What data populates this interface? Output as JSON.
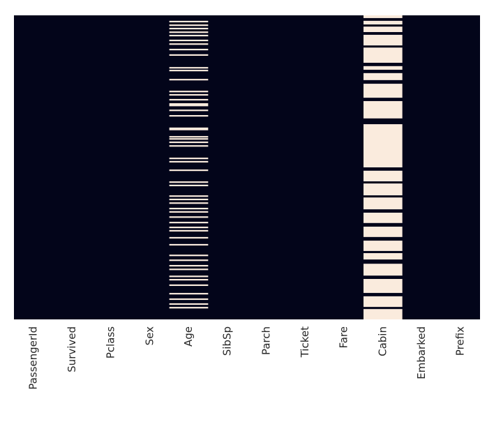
{
  "chart_data": {
    "type": "heatmap",
    "categories": [
      "PassengerId",
      "Survived",
      "Pclass",
      "Sex",
      "Age",
      "SibSp",
      "Parch",
      "Ticket",
      "Fare",
      "Cabin",
      "Embarked",
      "Prefix"
    ],
    "ylim": [
      0,
      100
    ],
    "colors": {
      "present": "#03051a",
      "missing": "#faebdd"
    },
    "missing": [
      [],
      [],
      [],
      [],
      [
        [
          1.8,
          2.3
        ],
        [
          3.0,
          3.5
        ],
        [
          4.1,
          4.6
        ],
        [
          5.3,
          5.8
        ],
        [
          6.4,
          6.9
        ],
        [
          8.0,
          8.5
        ],
        [
          9.2,
          9.7
        ],
        [
          11.0,
          11.5
        ],
        [
          12.8,
          13.3
        ],
        [
          17.0,
          17.5
        ],
        [
          17.9,
          18.4
        ],
        [
          20.9,
          21.4
        ],
        [
          24.8,
          25.3
        ],
        [
          25.9,
          26.4
        ],
        [
          27.5,
          28.0
        ],
        [
          28.9,
          29.9
        ],
        [
          31.0,
          31.5
        ],
        [
          32.8,
          33.3
        ],
        [
          36.9,
          37.8
        ],
        [
          39.7,
          40.2
        ],
        [
          40.4,
          40.9
        ],
        [
          41.5,
          42.0
        ],
        [
          42.7,
          43.2
        ],
        [
          46.8,
          47.3
        ],
        [
          47.9,
          48.4
        ],
        [
          50.7,
          51.2
        ],
        [
          54.6,
          55.1
        ],
        [
          55.7,
          56.2
        ],
        [
          59.2,
          59.7
        ],
        [
          60.3,
          60.8
        ],
        [
          61.5,
          62.0
        ],
        [
          63.3,
          63.8
        ],
        [
          64.4,
          64.9
        ],
        [
          66.1,
          66.6
        ],
        [
          67.9,
          68.4
        ],
        [
          69.5,
          70.0
        ],
        [
          70.6,
          71.1
        ],
        [
          72.9,
          73.4
        ],
        [
          75.2,
          75.7
        ],
        [
          78.7,
          79.2
        ],
        [
          80.3,
          80.8
        ],
        [
          82.1,
          82.6
        ],
        [
          83.3,
          83.8
        ],
        [
          85.6,
          86.1
        ],
        [
          86.7,
          87.2
        ],
        [
          88.5,
          89.0
        ],
        [
          91.3,
          91.8
        ],
        [
          93.1,
          93.6
        ],
        [
          94.7,
          95.2
        ],
        [
          95.9,
          96.4
        ]
      ],
      [],
      [],
      [],
      [],
      [
        [
          0,
          0.9
        ],
        [
          1.8,
          3.0
        ],
        [
          3.7,
          5.5
        ],
        [
          6.4,
          9.9
        ],
        [
          10.6,
          15.6
        ],
        [
          16.7,
          17.9
        ],
        [
          19.0,
          21.3
        ],
        [
          22.5,
          27.1
        ],
        [
          28.2,
          33.9
        ],
        [
          35.8,
          50.0
        ],
        [
          51.1,
          54.6
        ],
        [
          55.3,
          59.2
        ],
        [
          59.9,
          63.8
        ],
        [
          64.9,
          68.3
        ],
        [
          69.5,
          72.9
        ],
        [
          74.1,
          77.5
        ],
        [
          78.2,
          80.3
        ],
        [
          81.7,
          85.6
        ],
        [
          86.7,
          91.3
        ],
        [
          92.4,
          95.9
        ],
        [
          96.6,
          100
        ]
      ],
      [],
      []
    ]
  }
}
